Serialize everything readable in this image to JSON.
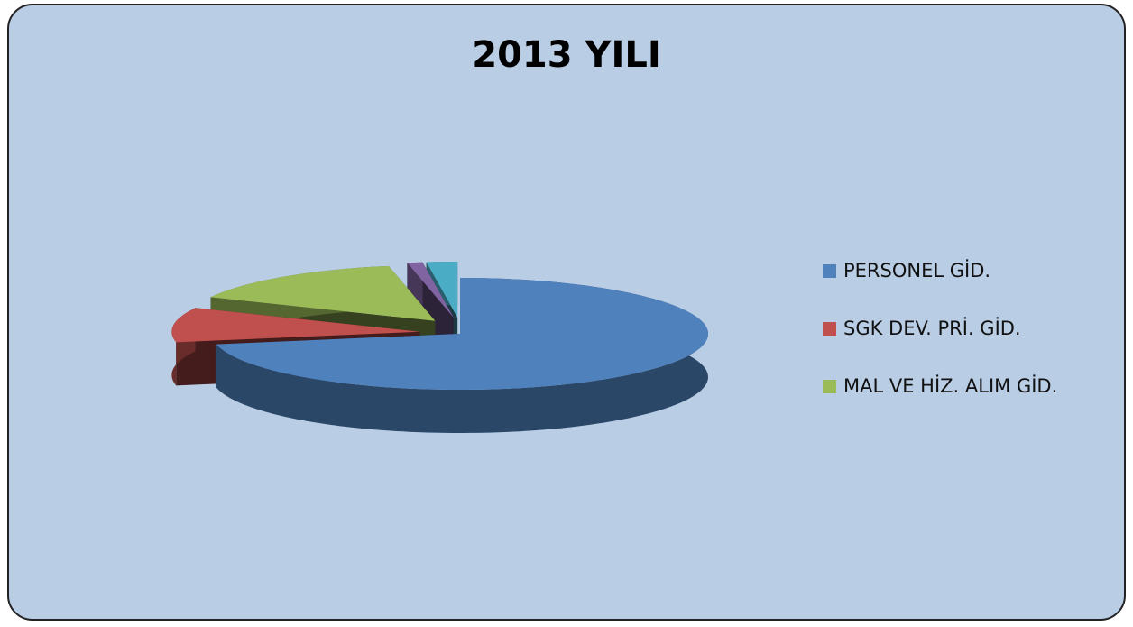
{
  "chart_data": {
    "type": "pie",
    "title": "2013 YILI",
    "categories": [
      "PERSONEL GİD.",
      "SGK DEV. PRİ. GİD.",
      "MAL VE HİZ. ALIM GİD.",
      null,
      null
    ],
    "values": [
      72,
      10,
      15,
      1,
      2
    ],
    "colors": [
      "#4f81bd",
      "#c0504d",
      "#9bbb59",
      "#8064a2",
      "#4bacc6"
    ],
    "legend": "right"
  }
}
